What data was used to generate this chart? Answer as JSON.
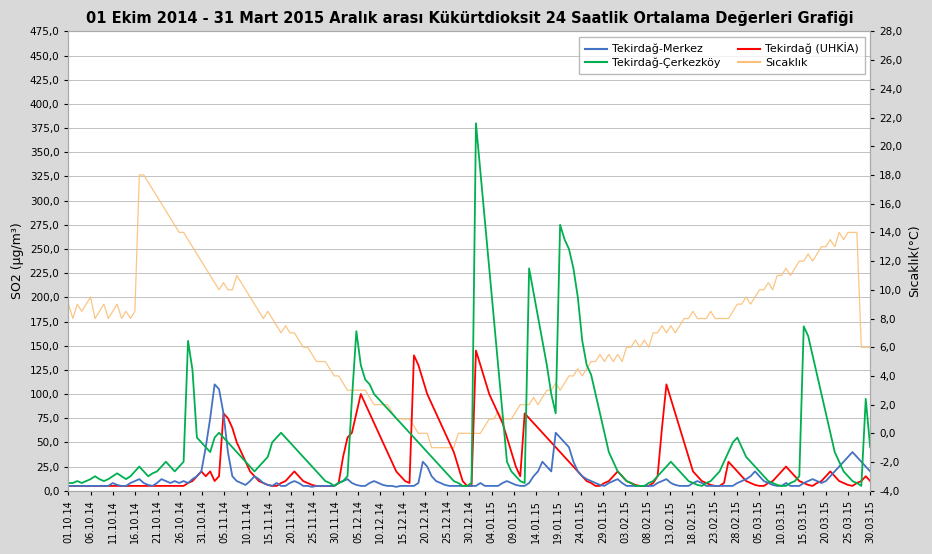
{
  "title": "01 Ekim 2014 - 31 Mart 2015 Aralık arası Kükürtdioksit 24 Saatlik Ortalama Değerleri Grafiği",
  "ylabel_left": "SO2 (µg/m³)",
  "ylabel_right": "Sıcaklık(°C)",
  "ylim_left": [
    0,
    475
  ],
  "ylim_right": [
    -4,
    28
  ],
  "yticks_left": [
    0,
    25,
    50,
    75,
    100,
    125,
    150,
    175,
    200,
    225,
    250,
    275,
    300,
    325,
    350,
    375,
    400,
    425,
    450,
    475
  ],
  "yticks_right": [
    -4,
    -2,
    0,
    2,
    4,
    6,
    8,
    10,
    12,
    14,
    16,
    18,
    20,
    22,
    24,
    26,
    28
  ],
  "color_merkez": "#4472C4",
  "color_cerkezkoy": "#00B050",
  "color_uhkia": "#FF0000",
  "color_sicaklik": "#FBBF77",
  "x_labels": [
    "01.10.14",
    "06.10.14",
    "11.10.14",
    "16.10.14",
    "21.10.14",
    "26.10.14",
    "31.10.14",
    "05.11.14",
    "10.11.14",
    "15.11.14",
    "20.11.14",
    "25.11.14",
    "30.11.14",
    "05.12.14",
    "10.12.14",
    "15.12.14",
    "20.12.14",
    "25.12.14",
    "30.12.14",
    "04.01.15",
    "09.01.15",
    "14.01.15",
    "19.01.15",
    "24.01.15",
    "29.01.15",
    "03.02.15",
    "08.02.15",
    "13.02.15",
    "18.02.15",
    "23.02.15",
    "28.02.15",
    "05.03.15",
    "10.03.15",
    "15.03.15",
    "20.03.15",
    "25.03.15",
    "30.03.15"
  ],
  "merkez": [
    5,
    5,
    5,
    5,
    5,
    5,
    5,
    5,
    5,
    5,
    8,
    6,
    5,
    5,
    8,
    10,
    12,
    8,
    6,
    5,
    8,
    12,
    10,
    8,
    10,
    8,
    10,
    8,
    12,
    15,
    20,
    45,
    75,
    110,
    105,
    80,
    40,
    15,
    10,
    8,
    6,
    10,
    15,
    12,
    8,
    6,
    5,
    8,
    5,
    5,
    8,
    10,
    8,
    5,
    5,
    4,
    5,
    5,
    5,
    5,
    5,
    8,
    10,
    12,
    8,
    6,
    5,
    5,
    8,
    10,
    8,
    6,
    5,
    5,
    4,
    5,
    5,
    5,
    5,
    8,
    30,
    25,
    15,
    10,
    8,
    6,
    5,
    5,
    5,
    5,
    5,
    5,
    5,
    8,
    5,
    5,
    5,
    5,
    8,
    10,
    8,
    6,
    5,
    5,
    8,
    15,
    20,
    30,
    25,
    20,
    60,
    55,
    50,
    45,
    30,
    20,
    15,
    12,
    10,
    8,
    6,
    5,
    8,
    10,
    12,
    8,
    5,
    5,
    5,
    5,
    5,
    5,
    5,
    8,
    10,
    12,
    8,
    6,
    5,
    5,
    5,
    8,
    10,
    8,
    5,
    5,
    5,
    5,
    5,
    5,
    5,
    8,
    10,
    12,
    15,
    20,
    15,
    10,
    8,
    6,
    5,
    5,
    8,
    5,
    5,
    5,
    8,
    10,
    12,
    10,
    8,
    10,
    15,
    20,
    25,
    30,
    35,
    40,
    35,
    30,
    25,
    20
  ],
  "cerkezkoy": [
    8,
    8,
    10,
    8,
    10,
    12,
    15,
    12,
    10,
    12,
    15,
    18,
    15,
    12,
    15,
    20,
    25,
    20,
    15,
    18,
    20,
    25,
    30,
    25,
    20,
    25,
    30,
    155,
    125,
    55,
    50,
    45,
    40,
    55,
    60,
    55,
    50,
    45,
    40,
    35,
    30,
    25,
    20,
    25,
    30,
    35,
    50,
    55,
    60,
    55,
    50,
    45,
    40,
    35,
    30,
    25,
    20,
    15,
    10,
    8,
    5,
    8,
    10,
    15,
    95,
    165,
    130,
    115,
    110,
    100,
    95,
    90,
    85,
    80,
    75,
    70,
    65,
    60,
    55,
    50,
    45,
    40,
    35,
    30,
    25,
    20,
    15,
    10,
    8,
    5,
    5,
    8,
    380,
    330,
    280,
    230,
    180,
    130,
    80,
    30,
    20,
    15,
    10,
    8,
    230,
    205,
    180,
    155,
    130,
    100,
    80,
    275,
    260,
    250,
    230,
    200,
    155,
    130,
    120,
    100,
    80,
    60,
    40,
    30,
    20,
    15,
    10,
    8,
    5,
    5,
    5,
    8,
    10,
    15,
    20,
    25,
    30,
    25,
    20,
    15,
    10,
    8,
    6,
    5,
    8,
    10,
    15,
    20,
    30,
    40,
    50,
    55,
    45,
    35,
    30,
    25,
    20,
    15,
    10,
    8,
    6,
    5,
    5,
    8,
    10,
    15,
    170,
    160,
    140,
    120,
    100,
    80,
    60,
    40,
    30,
    20,
    15,
    10,
    8,
    5,
    95,
    45
  ],
  "uhkia": [
    5,
    5,
    5,
    5,
    5,
    5,
    5,
    5,
    5,
    5,
    5,
    5,
    5,
    5,
    5,
    5,
    5,
    5,
    5,
    5,
    5,
    5,
    5,
    5,
    5,
    5,
    5,
    8,
    10,
    15,
    20,
    15,
    20,
    10,
    15,
    80,
    75,
    65,
    50,
    40,
    30,
    20,
    15,
    10,
    8,
    6,
    5,
    5,
    8,
    10,
    15,
    20,
    15,
    10,
    8,
    6,
    5,
    5,
    5,
    5,
    5,
    8,
    35,
    55,
    60,
    80,
    100,
    90,
    80,
    70,
    60,
    50,
    40,
    30,
    20,
    15,
    10,
    8,
    140,
    130,
    115,
    100,
    90,
    80,
    70,
    60,
    50,
    40,
    25,
    10,
    5,
    5,
    145,
    130,
    115,
    100,
    90,
    80,
    70,
    55,
    40,
    25,
    15,
    80,
    75,
    70,
    65,
    60,
    55,
    50,
    45,
    40,
    35,
    30,
    25,
    20,
    15,
    10,
    8,
    5,
    5,
    8,
    10,
    15,
    20,
    15,
    10,
    8,
    6,
    5,
    5,
    5,
    8,
    15,
    65,
    110,
    95,
    80,
    65,
    50,
    35,
    20,
    15,
    10,
    8,
    6,
    5,
    5,
    8,
    30,
    25,
    20,
    15,
    10,
    8,
    6,
    5,
    5,
    8,
    10,
    15,
    20,
    25,
    20,
    15,
    10,
    8,
    6,
    5,
    8,
    10,
    15,
    20,
    15,
    10,
    8,
    6,
    5,
    8,
    10,
    15,
    10
  ],
  "sicaklik": [
    9,
    8,
    9,
    8.5,
    9,
    9.5,
    8,
    8.5,
    9,
    8,
    8.5,
    9,
    8,
    8.5,
    8,
    8.5,
    18,
    18,
    17.5,
    17,
    16.5,
    16,
    15.5,
    15,
    14.5,
    14,
    14,
    13.5,
    13,
    12.5,
    12,
    11.5,
    11,
    10.5,
    10,
    10.5,
    10,
    10,
    11,
    10.5,
    10,
    9.5,
    9,
    8.5,
    8,
    8.5,
    8,
    7.5,
    7,
    7.5,
    7,
    7,
    6.5,
    6,
    6,
    5.5,
    5,
    5,
    5,
    4.5,
    4,
    4,
    3.5,
    3,
    3,
    3,
    3,
    3,
    2.5,
    2,
    2,
    2,
    2,
    1.5,
    1,
    1,
    1,
    1,
    0.5,
    0,
    0,
    0,
    -1,
    -1,
    -1,
    -1,
    -1,
    -1,
    0,
    0,
    0,
    0,
    0,
    0,
    0.5,
    1,
    1,
    1.5,
    1,
    1,
    1,
    1.5,
    2,
    2,
    2,
    2.5,
    2,
    2.5,
    3,
    3,
    3.5,
    3,
    3.5,
    4,
    4,
    4.5,
    4,
    4.5,
    5,
    5,
    5.5,
    5,
    5.5,
    5,
    5.5,
    5,
    6,
    6,
    6.5,
    6,
    6.5,
    6,
    7,
    7,
    7.5,
    7,
    7.5,
    7,
    7.5,
    8,
    8,
    8.5,
    8,
    8,
    8,
    8.5,
    8,
    8,
    8,
    8,
    8.5,
    9,
    9,
    9.5,
    9,
    9.5,
    10,
    10,
    10.5,
    10,
    11,
    11,
    11.5,
    11,
    11.5,
    12,
    12,
    12.5,
    12,
    12.5,
    13,
    13,
    13.5,
    13,
    14,
    13.5,
    14,
    14,
    14,
    6,
    6,
    6
  ]
}
